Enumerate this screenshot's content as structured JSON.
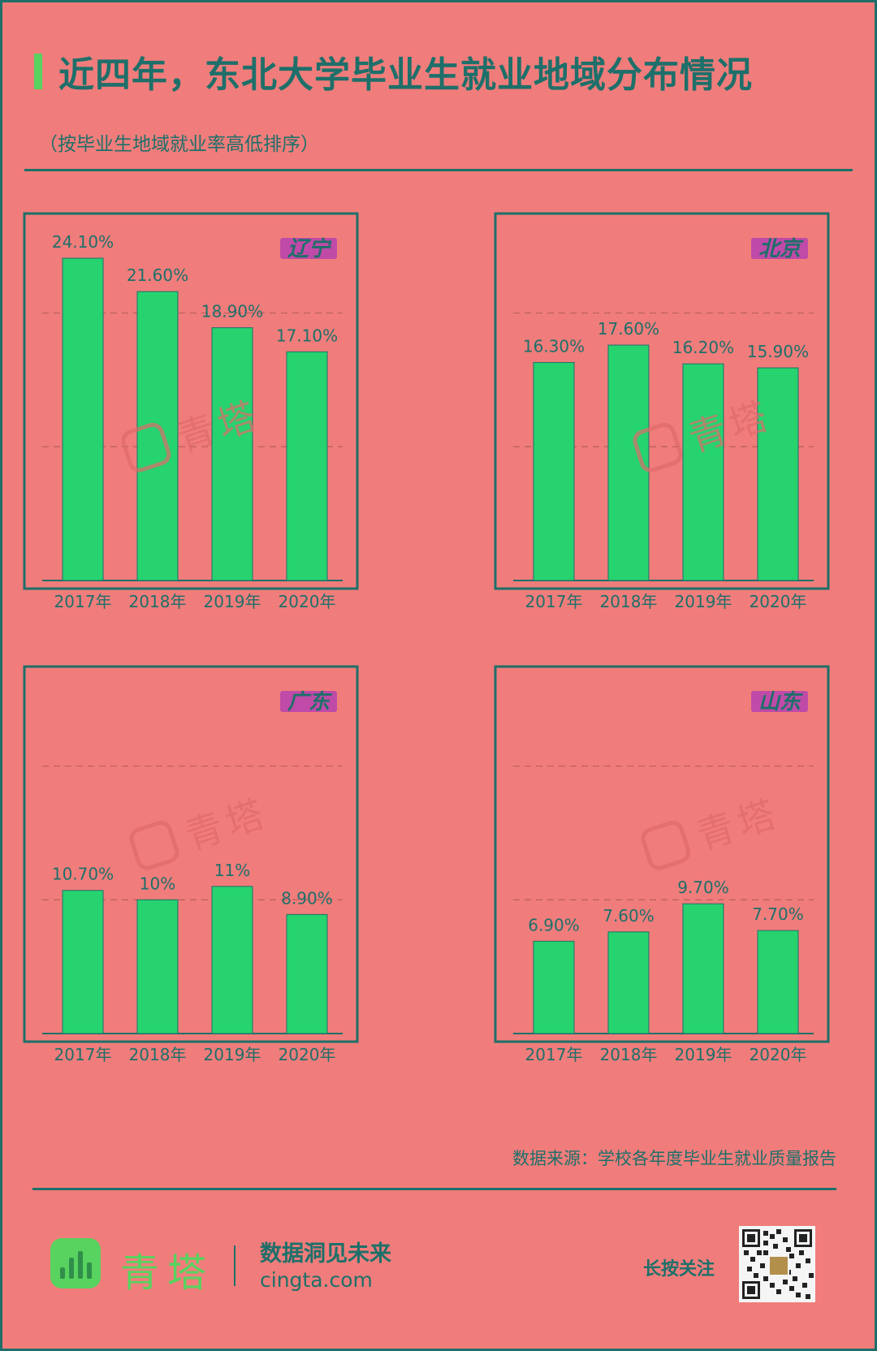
{
  "header": {
    "title": "近四年，东北大学毕业生就业地域分布情况",
    "subtitle": "（按毕业生地域就业率高低排序）"
  },
  "source": "数据来源：学校各年度毕业生就业质量报告",
  "footer": {
    "brand": "青塔",
    "slogan": "数据洞见未来",
    "domain": "cingta.com",
    "follow": "长按关注"
  },
  "watermark": "青塔",
  "colors": {
    "background": "#f07d7b",
    "bar": "#26d36f",
    "accent": "#1e6f6a",
    "region_tag": "#c04aa8",
    "brand": "#58d35f"
  },
  "icons": [
    "cingta-logo-icon",
    "qr-code-icon"
  ],
  "chart_data": [
    {
      "type": "bar",
      "title": "辽宁",
      "categories": [
        "2017年",
        "2018年",
        "2019年",
        "2020年"
      ],
      "values": [
        24.1,
        21.6,
        18.9,
        17.1
      ],
      "labels": [
        "24.10%",
        "21.60%",
        "18.90%",
        "17.10%"
      ],
      "ylim": [
        0,
        25
      ],
      "grid": [
        10,
        20
      ]
    },
    {
      "type": "bar",
      "title": "北京",
      "categories": [
        "2017年",
        "2018年",
        "2019年",
        "2020年"
      ],
      "values": [
        16.3,
        17.6,
        16.2,
        15.9
      ],
      "labels": [
        "16.30%",
        "17.60%",
        "16.20%",
        "15.90%"
      ],
      "ylim": [
        0,
        25
      ],
      "grid": [
        10,
        20
      ]
    },
    {
      "type": "bar",
      "title": "广东",
      "categories": [
        "2017年",
        "2018年",
        "2019年",
        "2020年"
      ],
      "values": [
        10.7,
        10,
        11,
        8.9
      ],
      "labels": [
        "10.70%",
        "10%",
        "11%",
        "8.90%"
      ],
      "ylim": [
        0,
        25
      ],
      "grid": [
        10,
        20
      ]
    },
    {
      "type": "bar",
      "title": "山东",
      "categories": [
        "2017年",
        "2018年",
        "2019年",
        "2020年"
      ],
      "values": [
        6.9,
        7.6,
        9.7,
        7.7
      ],
      "labels": [
        "6.90%",
        "7.60%",
        "9.70%",
        "7.70%"
      ],
      "ylim": [
        0,
        25
      ],
      "grid": [
        10,
        20
      ]
    }
  ]
}
